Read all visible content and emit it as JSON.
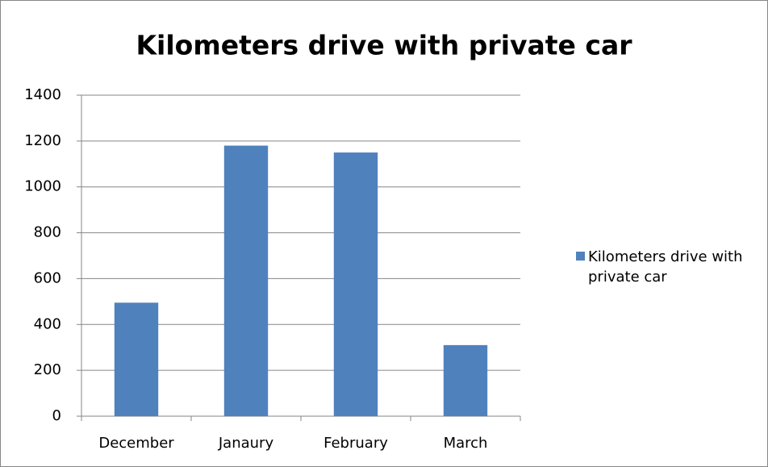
{
  "chart_data": {
    "type": "bar",
    "title": "Kilometers drive with private car",
    "categories": [
      "December",
      "Janaury",
      "February",
      "March"
    ],
    "series": [
      {
        "name": "Kilometers drive with private car",
        "color": "#4f81bd",
        "values": [
          495,
          1180,
          1150,
          310
        ]
      }
    ],
    "ylim": [
      0,
      1400
    ],
    "yticks": [
      0,
      200,
      400,
      600,
      800,
      1000,
      1200,
      1400
    ],
    "grid": true,
    "legend": "right"
  }
}
